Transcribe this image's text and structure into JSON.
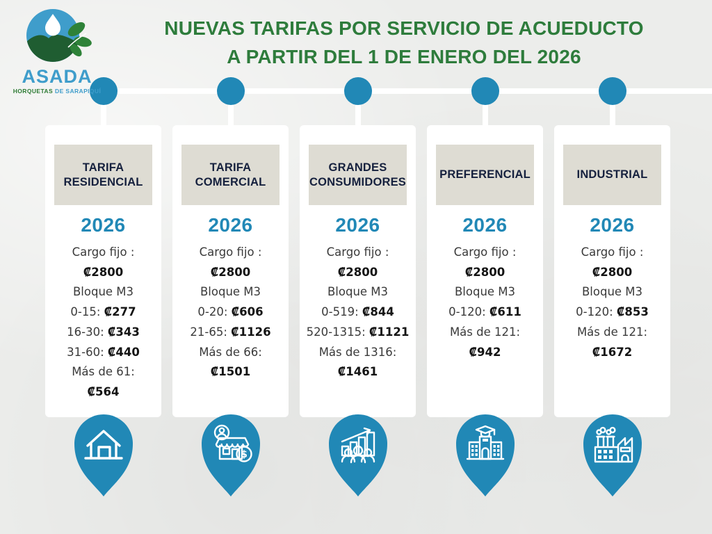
{
  "page": {
    "background_color": "#ecedeb"
  },
  "logo": {
    "icon": "asada-emblem-icon",
    "org_name": "ASADA",
    "tagline_primary": "HORQUETAS",
    "tagline_secondary": "DE SARAPIQUÍ",
    "name_color": "#3f9dcb",
    "tagline_primary_color": "#2c7a33"
  },
  "title": {
    "line1": "NUEVAS TARIFAS POR SERVICIO DE ACUEDUCTO",
    "line2": "A PARTIR DEL 1 DE ENERO DEL 2026",
    "color": "#2e7c3c"
  },
  "accent": {
    "blue": "#2188b6",
    "navy": "#16213e",
    "header_box_gray": "#dedcd3",
    "card_white": "#ffffff"
  },
  "columns": [
    {
      "id": "residencial",
      "header": "TARIFA RESIDENCIAL",
      "year": "2026",
      "icon": "house-icon",
      "rows": [
        {
          "label": "Cargo fijo :"
        },
        {
          "value": "₡2800"
        },
        {
          "label": "Bloque M3"
        },
        {
          "label": "0-15:",
          "value": "₡277"
        },
        {
          "label": "16-30:",
          "value": "₡343"
        },
        {
          "label": "31-60:",
          "value": "₡440"
        },
        {
          "label": "Más de 61:"
        },
        {
          "value": "₡564"
        }
      ]
    },
    {
      "id": "comercial",
      "header": "TARIFA COMERCIAL",
      "year": "2026",
      "icon": "storefront-icon",
      "rows": [
        {
          "label": "Cargo fijo :"
        },
        {
          "value": "₡2800"
        },
        {
          "label": "Bloque M3"
        },
        {
          "label": "0-20:",
          "value": "₡606"
        },
        {
          "label": "21-65:",
          "value": "₡1126"
        },
        {
          "label": "Más de 66:"
        },
        {
          "value": "₡1501"
        }
      ]
    },
    {
      "id": "grandes-consumidores",
      "header": "GRANDES CONSUMIDORES",
      "year": "2026",
      "icon": "growth-chart-people-icon",
      "rows": [
        {
          "label": "Cargo fijo :"
        },
        {
          "value": "₡2800"
        },
        {
          "label": "Bloque M3"
        },
        {
          "label": "0-519:",
          "value": "₡844"
        },
        {
          "label": "520-1315:",
          "value": "₡1121"
        },
        {
          "label": "Más de 1316:"
        },
        {
          "value": "₡1461"
        }
      ]
    },
    {
      "id": "preferencial",
      "header": "PREFERENCIAL",
      "year": "2026",
      "icon": "school-building-icon",
      "rows": [
        {
          "label": "Cargo fijo :"
        },
        {
          "value": "₡2800"
        },
        {
          "label": "Bloque M3"
        },
        {
          "label": "0-120:",
          "value": "₡611"
        },
        {
          "label": "Más de 121:"
        },
        {
          "value": "₡942"
        }
      ]
    },
    {
      "id": "industrial",
      "header": "INDUSTRIAL",
      "year": "2026",
      "icon": "factory-icon",
      "rows": [
        {
          "label": "Cargo fijo :"
        },
        {
          "value": "₡2800"
        },
        {
          "label": "Bloque M3"
        },
        {
          "label": "0-120:",
          "value": "₡853"
        },
        {
          "label": "Más de 121:"
        },
        {
          "value": "₡1672"
        }
      ]
    }
  ]
}
